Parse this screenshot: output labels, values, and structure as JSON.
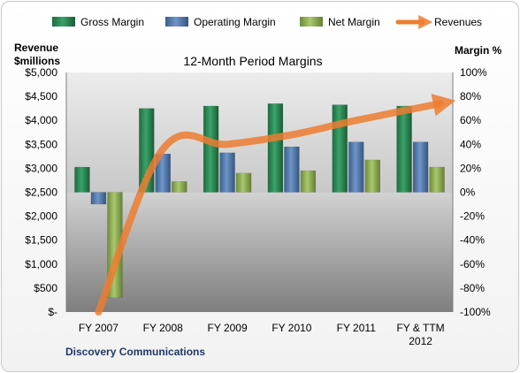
{
  "chart_data": {
    "type": "bar",
    "title": "12-Month Period Margins",
    "left_axis_title_line1": "Revenue",
    "left_axis_title_line2": "$millions",
    "right_axis_title": "Margin %",
    "footer": "Discovery Communications",
    "categories": [
      {
        "line1": "FY 2007",
        "line2": ""
      },
      {
        "line1": "FY 2008",
        "line2": ""
      },
      {
        "line1": "FY 2009",
        "line2": ""
      },
      {
        "line1": "FY 2010",
        "line2": ""
      },
      {
        "line1": "FY 2011",
        "line2": ""
      },
      {
        "line1": "FY & TTM",
        "line2": "2012"
      }
    ],
    "left_ticks": [
      "$5,000",
      "$4,500",
      "$4,000",
      "$3,500",
      "$3,000",
      "$2,500",
      "$2,000",
      "$1,500",
      "$1,000",
      "$500",
      "$-"
    ],
    "right_ticks": [
      "100%",
      "80%",
      "60%",
      "40%",
      "20%",
      "0%",
      "-20%",
      "-40%",
      "-60%",
      "-80%",
      "-100%"
    ],
    "ylim_left": [
      0,
      5000
    ],
    "ylim_right": [
      -100,
      100
    ],
    "legend_position": "top",
    "series": [
      {
        "name": "Gross Margin",
        "type": "bar",
        "axis": "right",
        "color": "#2e8b57",
        "values": [
          21,
          70,
          72,
          74,
          73,
          72
        ]
      },
      {
        "name": "Operating Margin",
        "type": "bar",
        "axis": "right",
        "color": "#4f81bd",
        "values": [
          -10,
          32,
          33,
          38,
          42,
          42
        ]
      },
      {
        "name": "Net Margin",
        "type": "bar",
        "axis": "right",
        "color": "#9bbb59",
        "values": [
          -88,
          9,
          16,
          18,
          27,
          21
        ]
      },
      {
        "name": "Revenues",
        "type": "line",
        "axis": "left",
        "color": "#ed7d31",
        "values": [
          0,
          3400,
          3500,
          3700,
          4000,
          4350
        ]
      }
    ]
  }
}
